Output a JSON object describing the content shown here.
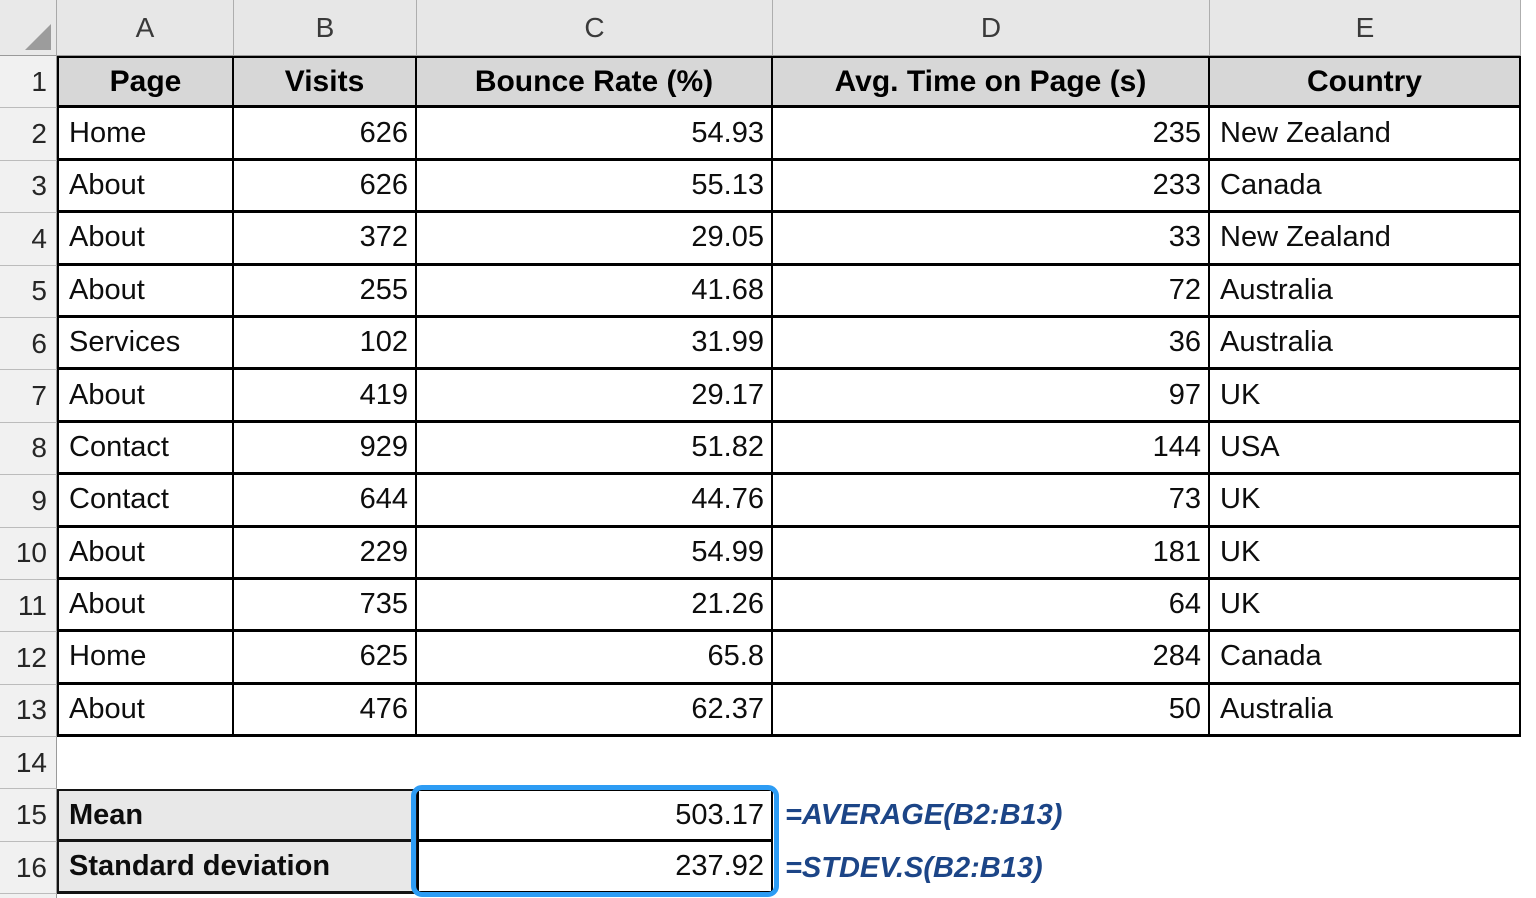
{
  "columns": {
    "letters": [
      "A",
      "B",
      "C",
      "D",
      "E"
    ]
  },
  "rows": {
    "numbers": [
      "1",
      "2",
      "3",
      "4",
      "5",
      "6",
      "7",
      "8",
      "9",
      "10",
      "11",
      "12",
      "13",
      "14",
      "15",
      "16"
    ]
  },
  "table": {
    "headers": [
      "Page",
      "Visits",
      "Bounce Rate (%)",
      "Avg. Time on Page (s)",
      "Country"
    ],
    "data": [
      {
        "page": "Home",
        "visits": "626",
        "bounce_rate": "54.93",
        "avg_time": "235",
        "country": "New Zealand"
      },
      {
        "page": "About",
        "visits": "626",
        "bounce_rate": "55.13",
        "avg_time": "233",
        "country": "Canada"
      },
      {
        "page": "About",
        "visits": "372",
        "bounce_rate": "29.05",
        "avg_time": "33",
        "country": "New Zealand"
      },
      {
        "page": "About",
        "visits": "255",
        "bounce_rate": "41.68",
        "avg_time": "72",
        "country": "Australia"
      },
      {
        "page": "Services",
        "visits": "102",
        "bounce_rate": "31.99",
        "avg_time": "36",
        "country": "Australia"
      },
      {
        "page": "About",
        "visits": "419",
        "bounce_rate": "29.17",
        "avg_time": "97",
        "country": "UK"
      },
      {
        "page": "Contact",
        "visits": "929",
        "bounce_rate": "51.82",
        "avg_time": "144",
        "country": "USA"
      },
      {
        "page": "Contact",
        "visits": "644",
        "bounce_rate": "44.76",
        "avg_time": "73",
        "country": "UK"
      },
      {
        "page": "About",
        "visits": "229",
        "bounce_rate": "54.99",
        "avg_time": "181",
        "country": "UK"
      },
      {
        "page": "About",
        "visits": "735",
        "bounce_rate": "21.26",
        "avg_time": "64",
        "country": "UK"
      },
      {
        "page": "Home",
        "visits": "625",
        "bounce_rate": "65.8",
        "avg_time": "284",
        "country": "Canada"
      },
      {
        "page": "About",
        "visits": "476",
        "bounce_rate": "62.37",
        "avg_time": "50",
        "country": "Australia"
      }
    ]
  },
  "summary": {
    "mean_label": "Mean",
    "mean_value": "503.17",
    "mean_formula": "=AVERAGE(B2:B13)",
    "stdev_label": "Standard deviation",
    "stdev_value": "237.92",
    "stdev_formula": "=STDEV.S(B2:B13)"
  },
  "colors": {
    "selection_blue": "#2d9cf4",
    "header_row_fill": "#d7d7d7",
    "label_cell_fill": "#e8e8e8",
    "column_strip_fill": "#e7e7e7",
    "row_header_fill": "#f1f1f1",
    "formula_text": "#1c4587",
    "grid_border": "#000000"
  }
}
